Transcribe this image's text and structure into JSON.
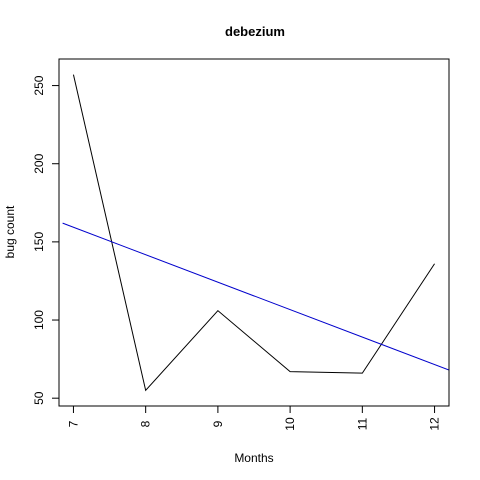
{
  "chart_data": {
    "type": "line",
    "title": "debezium",
    "xlabel": "Months",
    "ylabel": "bug count",
    "x": [
      7,
      8,
      9,
      10,
      11,
      12
    ],
    "series": [
      {
        "values": [
          257,
          55,
          106,
          67,
          66,
          136
        ],
        "color": "#000000"
      }
    ],
    "trend_line": {
      "x": [
        6.85,
        12.2
      ],
      "y": [
        162,
        68
      ],
      "color": "#0000cc"
    },
    "xticks": [
      7,
      8,
      9,
      10,
      11,
      12
    ],
    "yticks": [
      50,
      100,
      150,
      200,
      250
    ],
    "xlim": [
      6.8,
      12.2
    ],
    "ylim": [
      45,
      267
    ],
    "grid": false
  }
}
